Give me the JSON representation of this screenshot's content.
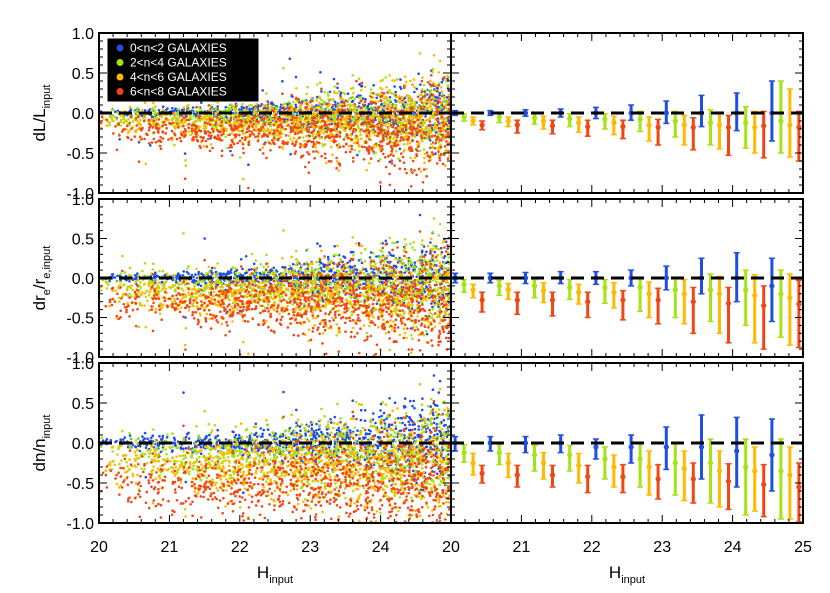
{
  "chart_data": {
    "type": "scatter",
    "layout": "3 rows x 2 columns",
    "legend": {
      "placement": "top-left",
      "background": "#000000",
      "entries": [
        {
          "label": "0<n<2 GALAXIES",
          "color": "#1f4fe0"
        },
        {
          "label": "2<n<4 GALAXIES",
          "color": "#a5e312"
        },
        {
          "label": "4<n<6 GALAXIES",
          "color": "#ffba00"
        },
        {
          "label": "6<n<8 GALAXIES",
          "color": "#f24714"
        }
      ]
    },
    "x_axis": {
      "label_main": "H",
      "label_sub": "input",
      "left": {
        "xlim": [
          20,
          25
        ],
        "tick_labels": [
          "20",
          "21",
          "22",
          "23",
          "24",
          ""
        ]
      },
      "right": {
        "xlim": [
          20,
          25
        ],
        "tick_labels": [
          "20",
          "21",
          "22",
          "23",
          "24",
          "25"
        ]
      }
    },
    "ylim": [
      -1.0,
      1.0
    ],
    "y_tick_labels": [
      "1.0",
      "0.5",
      "0.0",
      "-0.5",
      "-1.0"
    ],
    "reference_line": {
      "y": 0.0,
      "style": "dashed"
    },
    "series_order": [
      "0<n<2",
      "2<n<4",
      "4<n<6",
      "6<n<8"
    ],
    "bin_centers": [
      20.25,
      20.75,
      21.25,
      21.75,
      22.25,
      22.75,
      23.25,
      23.75,
      24.25,
      24.75
    ],
    "panels": [
      {
        "ylabel_main": "dL/L",
        "ylabel_sub": "input",
        "scatter_model": {
          "offsets": [
            0.0,
            -0.06,
            -0.13,
            -0.2
          ],
          "spread_bright": [
            0.025,
            0.07,
            0.09,
            0.1
          ],
          "spread_faint": [
            0.22,
            0.26,
            0.3,
            0.33
          ]
        },
        "binned": [
          {
            "series": "0<n<2",
            "median": [
              0.0,
              0.0,
              0.0,
              0.0,
              0.0,
              0.0,
              0.0,
              0.0,
              0.0,
              0.0
            ],
            "err_lo": [
              0.03,
              0.03,
              0.04,
              0.05,
              0.07,
              0.09,
              0.13,
              0.17,
              0.22,
              0.35
            ],
            "err_hi": [
              0.03,
              0.03,
              0.04,
              0.05,
              0.07,
              0.1,
              0.15,
              0.22,
              0.25,
              0.4
            ]
          },
          {
            "series": "2<n<4",
            "median": [
              -0.05,
              -0.05,
              -0.06,
              -0.07,
              -0.08,
              -0.08,
              -0.1,
              -0.12,
              -0.12,
              -0.1
            ],
            "err_lo": [
              0.05,
              0.07,
              0.08,
              0.1,
              0.12,
              0.15,
              0.2,
              0.28,
              0.32,
              0.4
            ],
            "err_hi": [
              0.04,
              0.05,
              0.05,
              0.06,
              0.07,
              0.1,
              0.12,
              0.16,
              0.2,
              0.5
            ]
          },
          {
            "series": "4<n<6",
            "median": [
              -0.1,
              -0.1,
              -0.1,
              -0.12,
              -0.12,
              -0.15,
              -0.15,
              -0.15,
              -0.18,
              -0.15
            ],
            "err_lo": [
              0.05,
              0.07,
              0.1,
              0.12,
              0.15,
              0.2,
              0.25,
              0.3,
              0.32,
              0.4
            ],
            "err_hi": [
              0.05,
              0.05,
              0.06,
              0.07,
              0.08,
              0.1,
              0.12,
              0.16,
              0.2,
              0.45
            ]
          },
          {
            "series": "6<n<8",
            "median": [
              -0.15,
              -0.15,
              -0.16,
              -0.17,
              -0.17,
              -0.18,
              -0.18,
              -0.18,
              -0.16,
              -0.18
            ],
            "err_lo": [
              0.06,
              0.1,
              0.1,
              0.12,
              0.15,
              0.22,
              0.28,
              0.35,
              0.4,
              0.42
            ],
            "err_hi": [
              0.05,
              0.06,
              0.07,
              0.08,
              0.08,
              0.1,
              0.12,
              0.15,
              0.18,
              0.2
            ]
          }
        ]
      },
      {
        "ylabel_main": "dr",
        "ylabel_sub": "e",
        "ylabel_mid": "/r",
        "ylabel_sub2": "e,input",
        "scatter_model": {
          "offsets": [
            0.0,
            -0.1,
            -0.2,
            -0.32
          ],
          "spread_bright": [
            0.03,
            0.1,
            0.12,
            0.13
          ],
          "spread_faint": [
            0.26,
            0.3,
            0.34,
            0.37
          ]
        },
        "binned": [
          {
            "series": "0<n<2",
            "median": [
              0.0,
              0.0,
              0.0,
              0.0,
              0.0,
              0.0,
              0.0,
              0.0,
              0.0,
              -0.1
            ],
            "err_lo": [
              0.06,
              0.06,
              0.07,
              0.07,
              0.08,
              0.1,
              0.15,
              0.2,
              0.3,
              0.45
            ],
            "err_hi": [
              0.06,
              0.06,
              0.07,
              0.08,
              0.08,
              0.1,
              0.15,
              0.25,
              0.32,
              0.35
            ]
          },
          {
            "series": "2<n<4",
            "median": [
              -0.08,
              -0.1,
              -0.1,
              -0.12,
              -0.12,
              -0.12,
              -0.15,
              -0.15,
              -0.15,
              -0.2
            ],
            "err_lo": [
              0.1,
              0.12,
              0.15,
              0.15,
              0.2,
              0.3,
              0.35,
              0.4,
              0.45,
              0.55
            ],
            "err_hi": [
              0.06,
              0.07,
              0.08,
              0.1,
              0.1,
              0.12,
              0.15,
              0.2,
              0.25,
              0.3
            ]
          },
          {
            "series": "4<n<6",
            "median": [
              -0.15,
              -0.15,
              -0.16,
              -0.18,
              -0.18,
              -0.2,
              -0.2,
              -0.2,
              -0.22,
              -0.25
            ],
            "err_lo": [
              0.1,
              0.12,
              0.15,
              0.15,
              0.2,
              0.3,
              0.38,
              0.5,
              0.6,
              0.6
            ],
            "err_hi": [
              0.07,
              0.08,
              0.1,
              0.1,
              0.12,
              0.15,
              0.18,
              0.22,
              0.26,
              0.3
            ]
          },
          {
            "series": "6<n<8",
            "median": [
              -0.28,
              -0.28,
              -0.28,
              -0.3,
              -0.28,
              -0.28,
              -0.3,
              -0.32,
              -0.35,
              -0.33
            ],
            "err_lo": [
              0.15,
              0.18,
              0.2,
              0.2,
              0.25,
              0.3,
              0.4,
              0.5,
              0.55,
              0.55
            ],
            "err_hi": [
              0.1,
              0.1,
              0.1,
              0.12,
              0.12,
              0.15,
              0.18,
              0.2,
              0.25,
              0.3
            ]
          }
        ]
      },
      {
        "ylabel_main": "dn/n",
        "ylabel_sub": "input",
        "scatter_model": {
          "offsets": [
            0.0,
            -0.15,
            -0.3,
            -0.5
          ],
          "spread_bright": [
            0.04,
            0.14,
            0.17,
            0.18
          ],
          "spread_faint": [
            0.3,
            0.34,
            0.37,
            0.4
          ]
        },
        "binned": [
          {
            "series": "0<n<2",
            "median": [
              0.0,
              0.0,
              0.0,
              0.0,
              -0.05,
              -0.05,
              -0.05,
              -0.05,
              -0.1,
              -0.15
            ],
            "err_lo": [
              0.1,
              0.1,
              0.12,
              0.12,
              0.15,
              0.2,
              0.28,
              0.4,
              0.45,
              0.45
            ],
            "err_hi": [
              0.08,
              0.08,
              0.08,
              0.1,
              0.1,
              0.15,
              0.25,
              0.4,
              0.42,
              0.45
            ]
          },
          {
            "series": "2<n<4",
            "median": [
              -0.12,
              -0.12,
              -0.15,
              -0.15,
              -0.2,
              -0.2,
              -0.25,
              -0.25,
              -0.3,
              -0.35
            ],
            "err_lo": [
              0.12,
              0.15,
              0.2,
              0.2,
              0.25,
              0.35,
              0.4,
              0.5,
              0.6,
              0.6
            ],
            "err_hi": [
              0.1,
              0.1,
              0.12,
              0.12,
              0.15,
              0.2,
              0.25,
              0.3,
              0.35,
              0.4
            ]
          },
          {
            "series": "4<n<6",
            "median": [
              -0.25,
              -0.25,
              -0.25,
              -0.28,
              -0.3,
              -0.3,
              -0.32,
              -0.35,
              -0.35,
              -0.4
            ],
            "err_lo": [
              0.15,
              0.18,
              0.2,
              0.22,
              0.25,
              0.35,
              0.4,
              0.45,
              0.5,
              0.55
            ],
            "err_hi": [
              0.12,
              0.12,
              0.13,
              0.15,
              0.15,
              0.2,
              0.22,
              0.25,
              0.3,
              0.35
            ]
          },
          {
            "series": "6<n<8",
            "median": [
              -0.38,
              -0.4,
              -0.4,
              -0.42,
              -0.42,
              -0.45,
              -0.45,
              -0.48,
              -0.52,
              -0.55
            ],
            "err_lo": [
              0.12,
              0.15,
              0.15,
              0.2,
              0.2,
              0.25,
              0.3,
              0.35,
              0.4,
              0.45
            ],
            "err_hi": [
              0.1,
              0.12,
              0.12,
              0.14,
              0.15,
              0.18,
              0.2,
              0.22,
              0.25,
              0.3
            ]
          }
        ]
      }
    ]
  }
}
